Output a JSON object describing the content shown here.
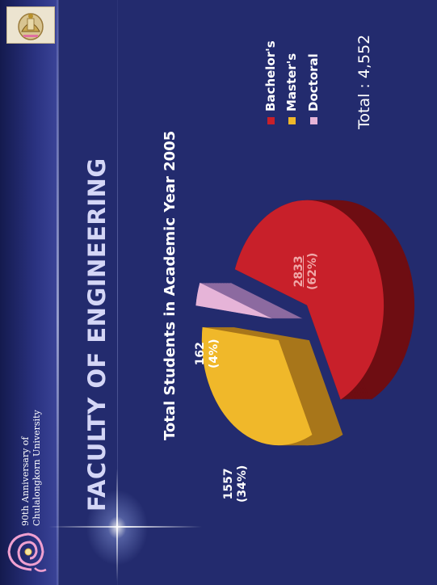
{
  "header": {
    "university_line1": "90th Anniversary of",
    "university_line2": "Chulalongkorn University",
    "faculty_title": "FACULTY OF ENGINEERING"
  },
  "chart_data": {
    "type": "pie",
    "title": "Total Students in Academic Year 2005",
    "total_text": "Total : 4,552",
    "legend_position": "top-right",
    "slices": [
      {
        "name": "Bachelor's",
        "value": 2833,
        "percent": 62,
        "value_label": "2833",
        "percent_label": "(62%)",
        "color": "#c8202a",
        "side_color": "#6e0d12"
      },
      {
        "name": "Master's",
        "value": 1557,
        "percent": 34,
        "value_label": "1557",
        "percent_label": "(34%)",
        "color": "#f0b82a",
        "side_color": "#a8761a"
      },
      {
        "name": "Doctoral",
        "value": 162,
        "percent": 4,
        "value_label": "162",
        "percent_label": "(4%)",
        "color": "#e6b4d8",
        "side_color": "#8c6aa0"
      }
    ]
  },
  "colors": {
    "background": "#232b6e",
    "title": "#d4d6f6"
  },
  "icons": [
    "university-seal-icon",
    "anniversary-emblem-icon"
  ]
}
